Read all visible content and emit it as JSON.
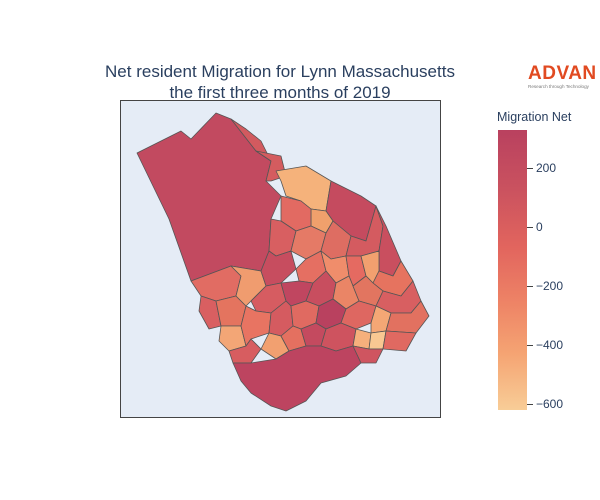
{
  "title_line1": "Net resident Migration for Lynn Massachusetts",
  "title_line2": "the first three months of 2019",
  "logo": {
    "word": "ADVAN",
    "tagline": "Research through Technology"
  },
  "colorbar": {
    "title": "Migration Net",
    "range": [
      -620,
      330
    ],
    "ticks": [
      {
        "value": 200,
        "label": "200"
      },
      {
        "value": 0,
        "label": "0"
      },
      {
        "value": -200,
        "label": "−200"
      },
      {
        "value": -400,
        "label": "−400"
      },
      {
        "value": -600,
        "label": "−600"
      }
    ],
    "colorscale": [
      "#b9415f",
      "#c9515f",
      "#e2655e",
      "#ee8466",
      "#f5a473",
      "#f8cd97"
    ]
  },
  "map": {
    "background": "#e5ecf6",
    "border_color": "#444444",
    "region_outline": "#555555"
  }
}
